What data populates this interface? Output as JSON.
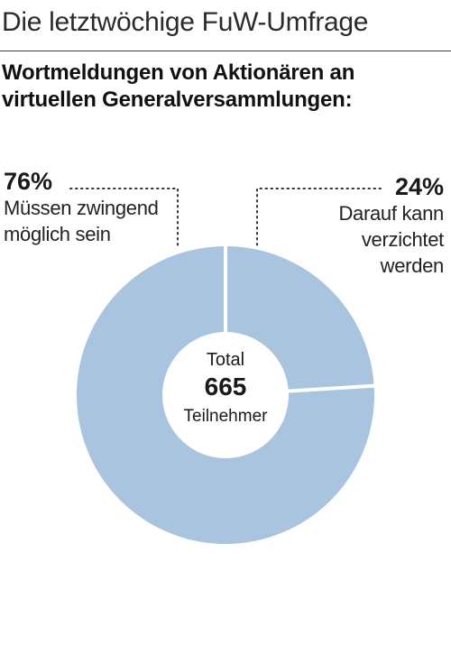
{
  "kicker": "Die letztwöchige FuW-Umfrage",
  "headline": "Wortmeldungen von Aktionären an virtuellen Generalversammlungen:",
  "colors": {
    "slice": "#a9c4df",
    "separator": "#ffffff",
    "leader": "#333333"
  },
  "center": {
    "total_label": "Total",
    "total_value": "665",
    "unit": "Teilnehmer"
  },
  "chart_data": {
    "type": "pie",
    "donut": true,
    "categories": [
      "Müssen zwingend möglich sein",
      "Darauf kann verzichtet werden"
    ],
    "values": [
      76,
      24
    ],
    "value_labels": [
      "76%",
      "24%"
    ],
    "total": 665
  }
}
